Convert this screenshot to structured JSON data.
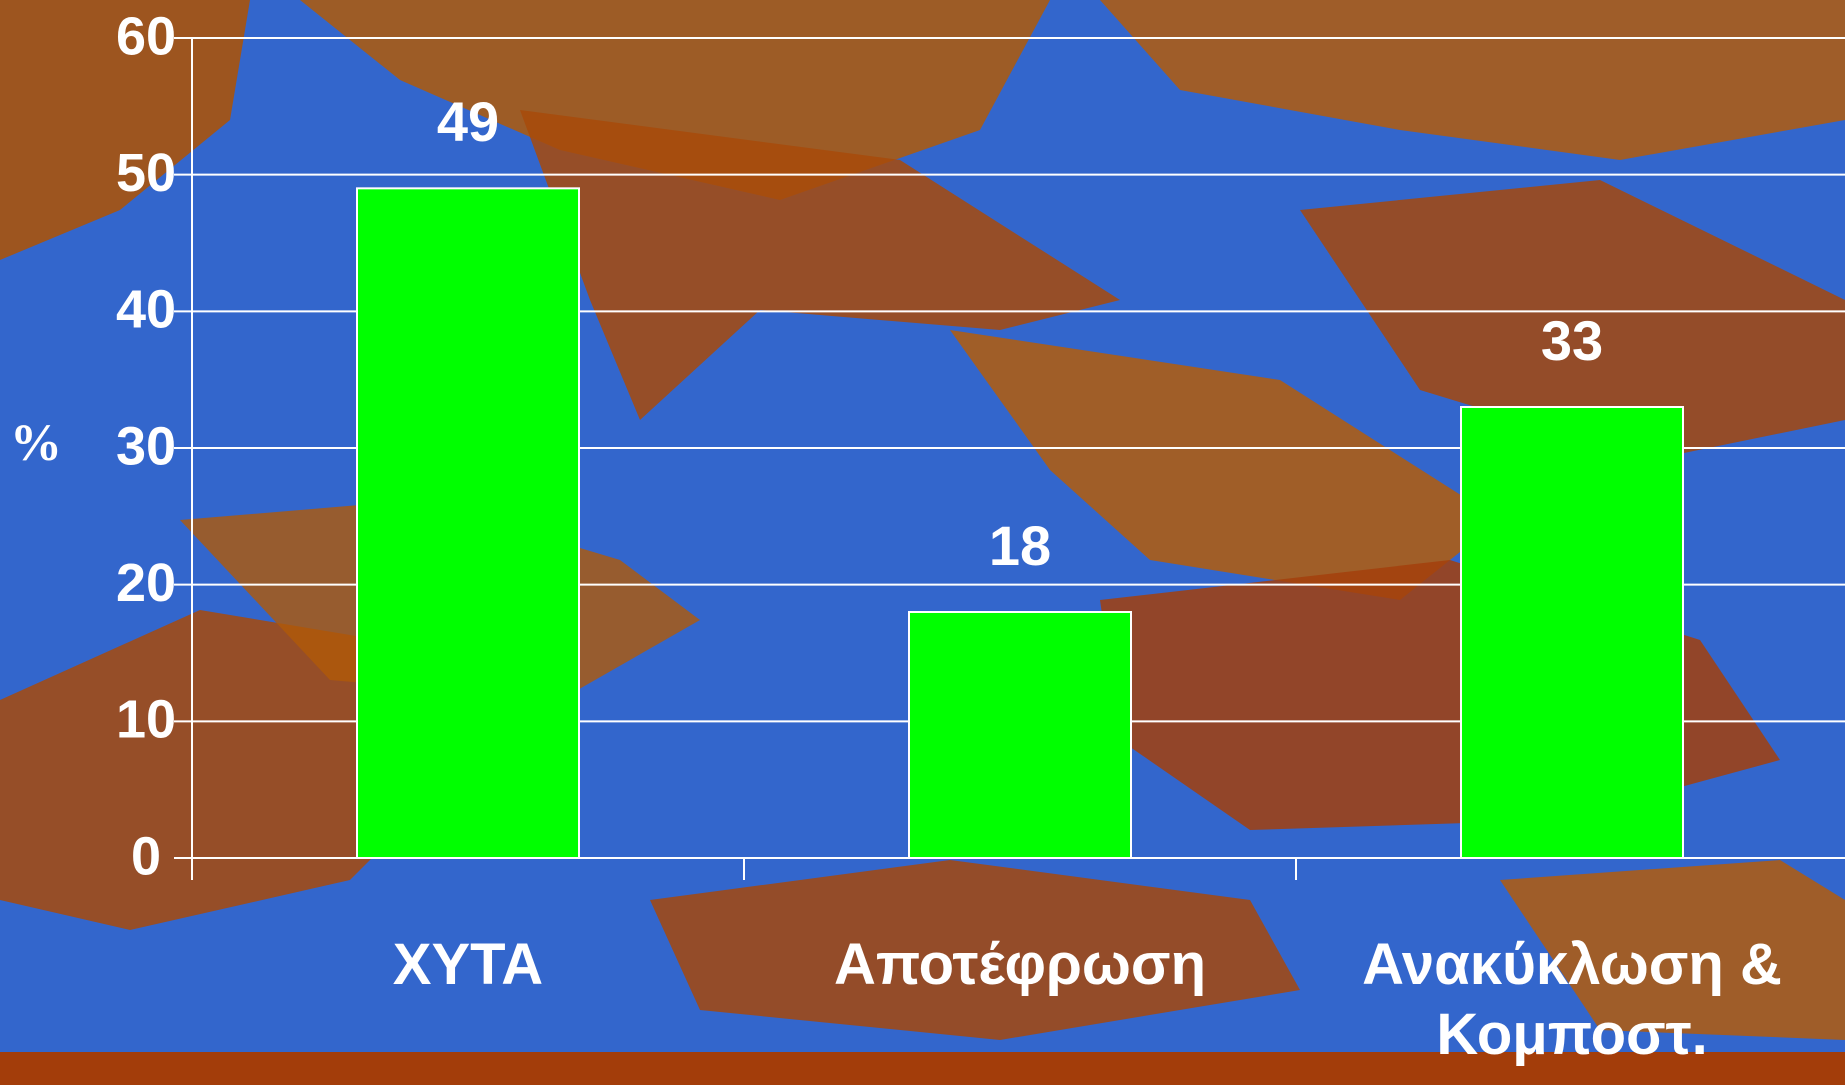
{
  "chart_data": {
    "type": "bar",
    "y_label": "%",
    "categories": [
      "ΧΥΤΑ",
      "Αποτέφρωση",
      "Ανακύκλωση & Κομποστ."
    ],
    "values": [
      49,
      18,
      33
    ],
    "color": "#00ff00",
    "ylim": [
      0,
      60
    ],
    "yticks": [
      0,
      10,
      20,
      30,
      40,
      50,
      60
    ],
    "grid": true
  }
}
